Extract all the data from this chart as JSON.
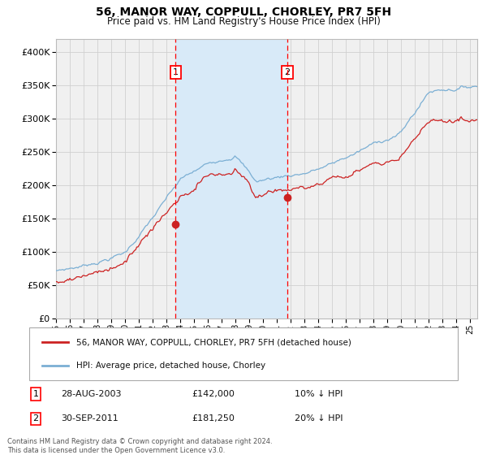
{
  "title": "56, MANOR WAY, COPPULL, CHORLEY, PR7 5FH",
  "subtitle": "Price paid vs. HM Land Registry's House Price Index (HPI)",
  "hpi_color": "#7bafd4",
  "price_color": "#cc2222",
  "background_color": "#ffffff",
  "plot_bg_color": "#f0f0f0",
  "shade_color": "#d8eaf8",
  "grid_color": "#d0d0d0",
  "transaction1_date_num": 2003.66,
  "transaction1_price": 142000,
  "transaction2_date_num": 2011.75,
  "transaction2_price": 181250,
  "transaction1_label": "28-AUG-2003",
  "transaction2_label": "30-SEP-2011",
  "transaction1_pct": "10% ↓ HPI",
  "transaction2_pct": "20% ↓ HPI",
  "legend_line1": "56, MANOR WAY, COPPULL, CHORLEY, PR7 5FH (detached house)",
  "legend_line2": "HPI: Average price, detached house, Chorley",
  "footer": "Contains HM Land Registry data © Crown copyright and database right 2024.\nThis data is licensed under the Open Government Licence v3.0.",
  "ylim": [
    0,
    420000
  ],
  "yticks": [
    0,
    50000,
    100000,
    150000,
    200000,
    250000,
    300000,
    350000,
    400000
  ],
  "start_year": 1995.0,
  "end_year": 2025.5
}
